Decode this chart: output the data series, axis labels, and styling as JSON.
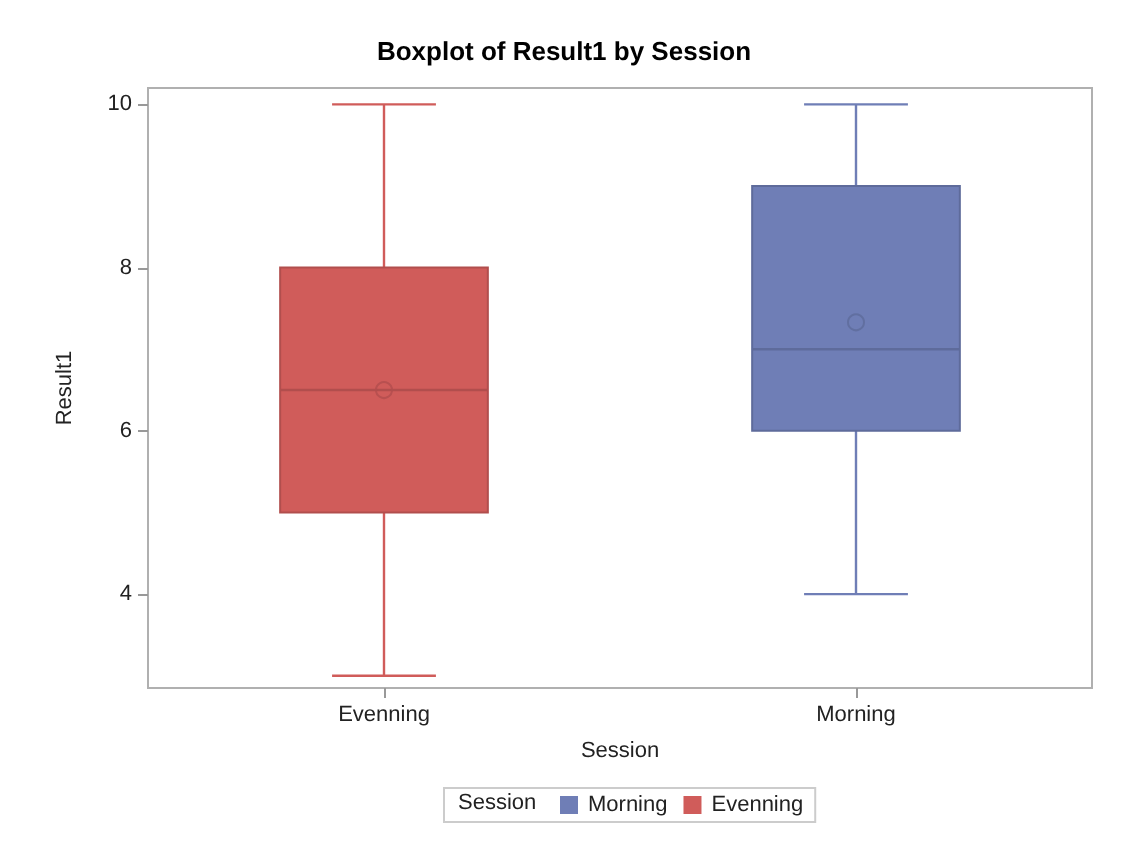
{
  "chart_data": {
    "type": "box",
    "title": "Boxplot of Result1 by Session",
    "xlabel": "Session",
    "ylabel": "Result1",
    "legend_title": "Session",
    "categories": [
      "Evenning",
      "Morning"
    ],
    "ylim": [
      2.85,
      10.2
    ],
    "yticks": [
      4,
      6,
      8,
      10
    ],
    "grid": false,
    "legend": "bottom",
    "series": [
      {
        "name": "Morning",
        "color": "#6f7eb6",
        "boxes": [
          null,
          {
            "low": 4,
            "q1": 6,
            "median": 7,
            "q3": 9,
            "high": 10,
            "mean": 7.33
          }
        ]
      },
      {
        "name": "Evenning",
        "color": "#d05c5a",
        "boxes": [
          {
            "low": 3,
            "q1": 5,
            "median": 6.5,
            "q3": 8,
            "high": 10,
            "mean": 6.5
          },
          null
        ]
      }
    ]
  }
}
